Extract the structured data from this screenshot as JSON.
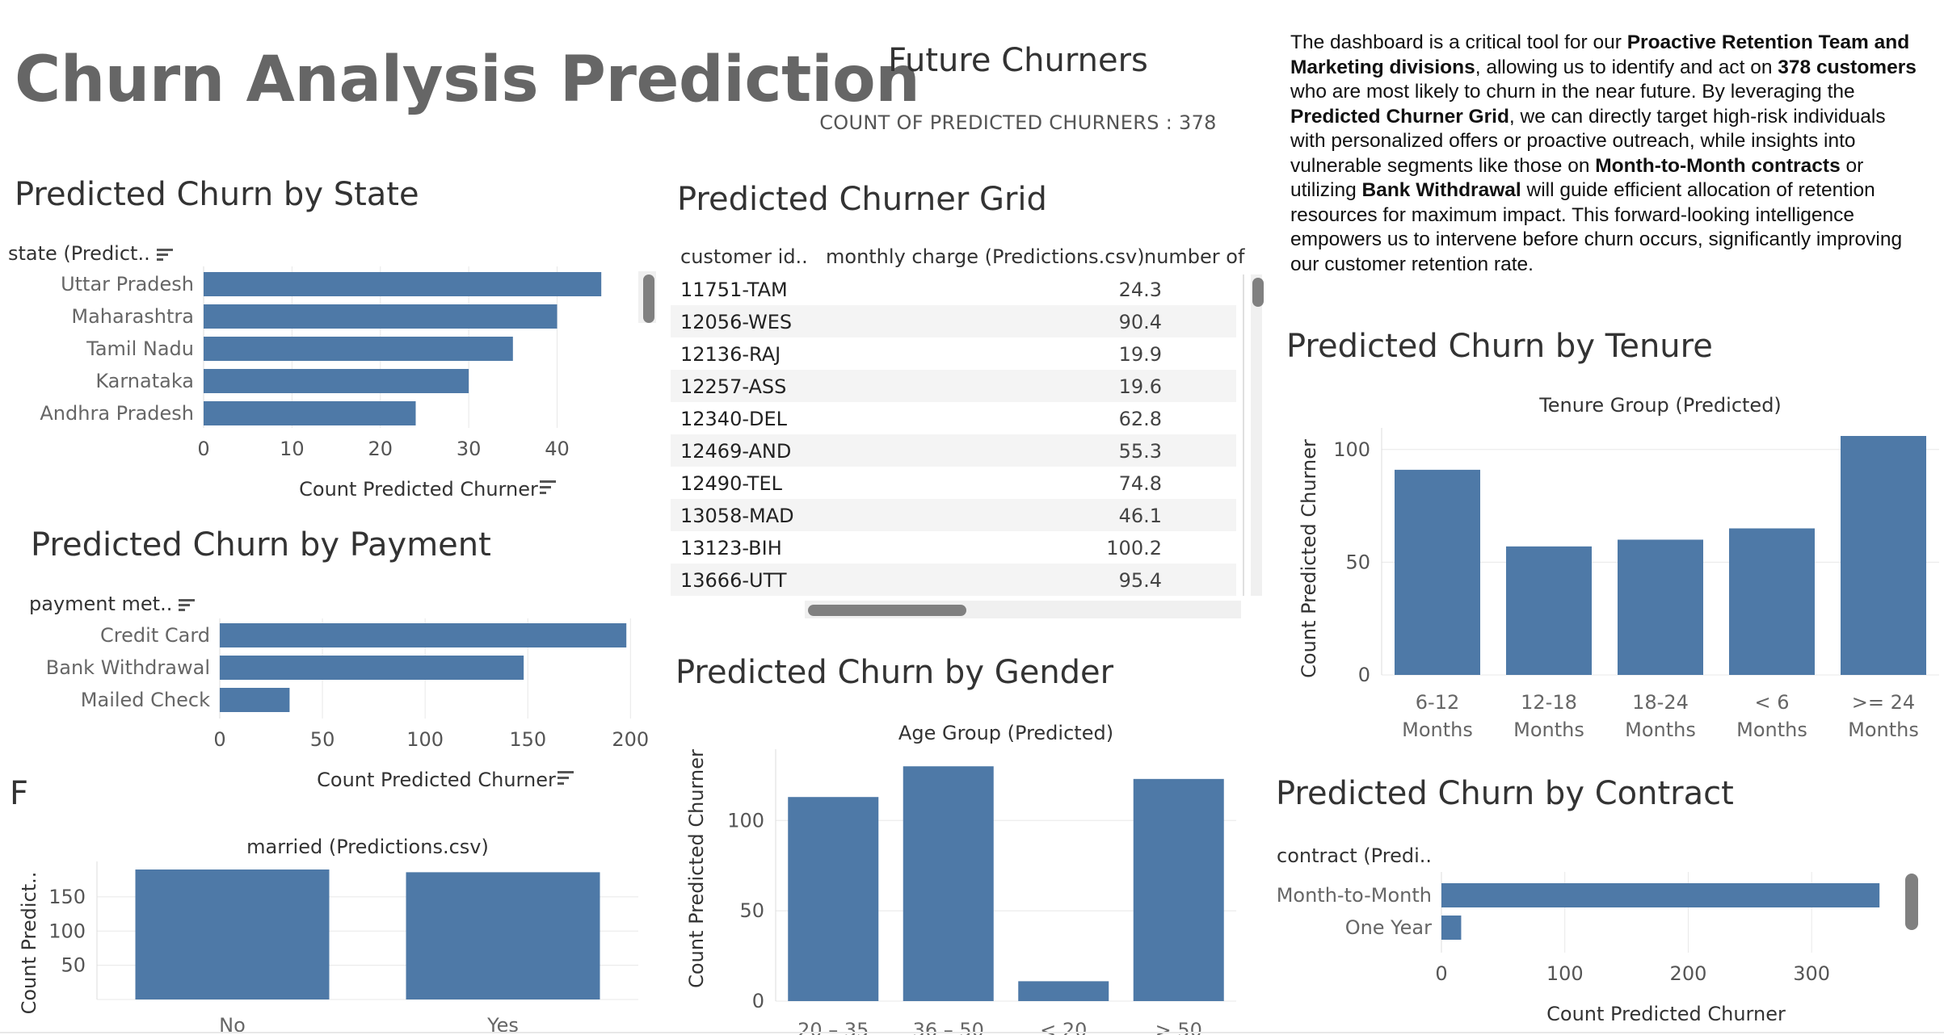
{
  "header": {
    "title": "Churn Analysis Prediction",
    "future_title": "Future Churners",
    "count_line": "COUNT OF PREDICTED CHURNERS : 378"
  },
  "narrative": {
    "segments": [
      {
        "t": "The dashboard is a critical tool for our ",
        "b": false
      },
      {
        "t": "Proactive Retention Team and Marketing divisions",
        "b": true
      },
      {
        "t": ", allowing us to identify and act on ",
        "b": false
      },
      {
        "t": "378 customers",
        "b": true
      },
      {
        "t": " who are most likely to churn in the near future. By leveraging the ",
        "b": false
      },
      {
        "t": "Predicted Churner Grid",
        "b": true
      },
      {
        "t": ", we can directly target high-risk individuals with personalized offers or proactive outreach, while insights into vulnerable segments like those on ",
        "b": false
      },
      {
        "t": "Month-to-Month contracts",
        "b": true
      },
      {
        "t": " or utilizing ",
        "b": false
      },
      {
        "t": "Bank Withdrawal",
        "b": true
      },
      {
        "t": " will guide efficient allocation of retention resources for maximum impact. This forward-looking intelligence empowers us to intervene before churn occurs, significantly improving our customer retention rate.",
        "b": false
      }
    ]
  },
  "panels": {
    "state_title": "Predicted Churn by State",
    "payment_title": "Predicted Churn by Payment",
    "grid_title": "Predicted Churner Grid",
    "gender_title": "Predicted Churn by Gender",
    "tenure_title": "Predicted Churn by Tenure",
    "contract_title": "Predicted Churn by Contract",
    "married_title_partial": "F"
  },
  "grid": {
    "headers": [
      "customer id..",
      "monthly charge (Predictions.csv)",
      "number of"
    ],
    "rows": [
      {
        "id": "11751-TAM",
        "mc": "24.3"
      },
      {
        "id": "12056-WES",
        "mc": "90.4"
      },
      {
        "id": "12136-RAJ",
        "mc": "19.9"
      },
      {
        "id": "12257-ASS",
        "mc": "19.6"
      },
      {
        "id": "12340-DEL",
        "mc": "62.8"
      },
      {
        "id": "12469-AND",
        "mc": "55.3"
      },
      {
        "id": "12490-TEL",
        "mc": "74.8"
      },
      {
        "id": "13058-MAD",
        "mc": "46.1"
      },
      {
        "id": "13123-BIH",
        "mc": "100.2"
      },
      {
        "id": "13666-UTT",
        "mc": "95.4"
      }
    ]
  },
  "colors": {
    "bar": "#4e79a7",
    "grid": "#e8e8e8"
  },
  "chart_data": [
    {
      "id": "state",
      "type": "bar",
      "orientation": "horizontal",
      "dim_label": "state (Predict..",
      "xlabel": "Count Predicted Churner",
      "categories": [
        "Uttar Pradesh",
        "Maharashtra",
        "Tamil Nadu",
        "Karnataka",
        "Andhra Pradesh"
      ],
      "values": [
        45,
        40,
        35,
        30,
        24
      ],
      "ticks": [
        0,
        10,
        20,
        30,
        40
      ],
      "xlim": [
        0,
        48
      ]
    },
    {
      "id": "payment",
      "type": "bar",
      "orientation": "horizontal",
      "dim_label": "payment met..",
      "xlabel": "Count Predicted Churner",
      "categories": [
        "Credit Card",
        "Bank Withdrawal",
        "Mailed Check"
      ],
      "values": [
        198,
        148,
        34
      ],
      "ticks": [
        0,
        50,
        100,
        150,
        200
      ],
      "xlim": [
        0,
        205
      ]
    },
    {
      "id": "married",
      "type": "bar",
      "orientation": "vertical",
      "title": "married (Predictions.csv)",
      "ylabel": "Count Predict..",
      "categories": [
        "No",
        "Yes"
      ],
      "values": [
        190,
        186
      ],
      "ticks": [
        50,
        100,
        150
      ],
      "ylim": [
        0,
        190
      ]
    },
    {
      "id": "gender",
      "type": "bar",
      "orientation": "vertical",
      "title": "Age Group (Predicted)",
      "ylabel": "Count Predicted Churner",
      "categories": [
        "20 – 35",
        "36 – 50",
        "< 20",
        "> 50"
      ],
      "values": [
        113,
        130,
        11,
        123
      ],
      "ticks": [
        0,
        50,
        100
      ],
      "ylim": [
        0,
        135
      ]
    },
    {
      "id": "tenure",
      "type": "bar",
      "orientation": "vertical",
      "title": "Tenure Group  (Predicted)",
      "ylabel": "Count Predicted Churner",
      "categories": [
        "6-12 Months",
        "12-18 Months",
        "18-24 Months",
        "< 6 Months",
        ">= 24 Months"
      ],
      "values": [
        91,
        57,
        60,
        65,
        106
      ],
      "ticks": [
        0,
        50,
        100
      ],
      "ylim": [
        0,
        106
      ]
    },
    {
      "id": "contract",
      "type": "bar",
      "orientation": "horizontal",
      "dim_label": "contract (Predi..",
      "xlabel": "Count Predicted Churner",
      "categories": [
        "Month-to-Month",
        "One Year"
      ],
      "values": [
        355,
        16
      ],
      "ticks": [
        0,
        100,
        200,
        300
      ],
      "xlim": [
        0,
        385
      ]
    }
  ]
}
